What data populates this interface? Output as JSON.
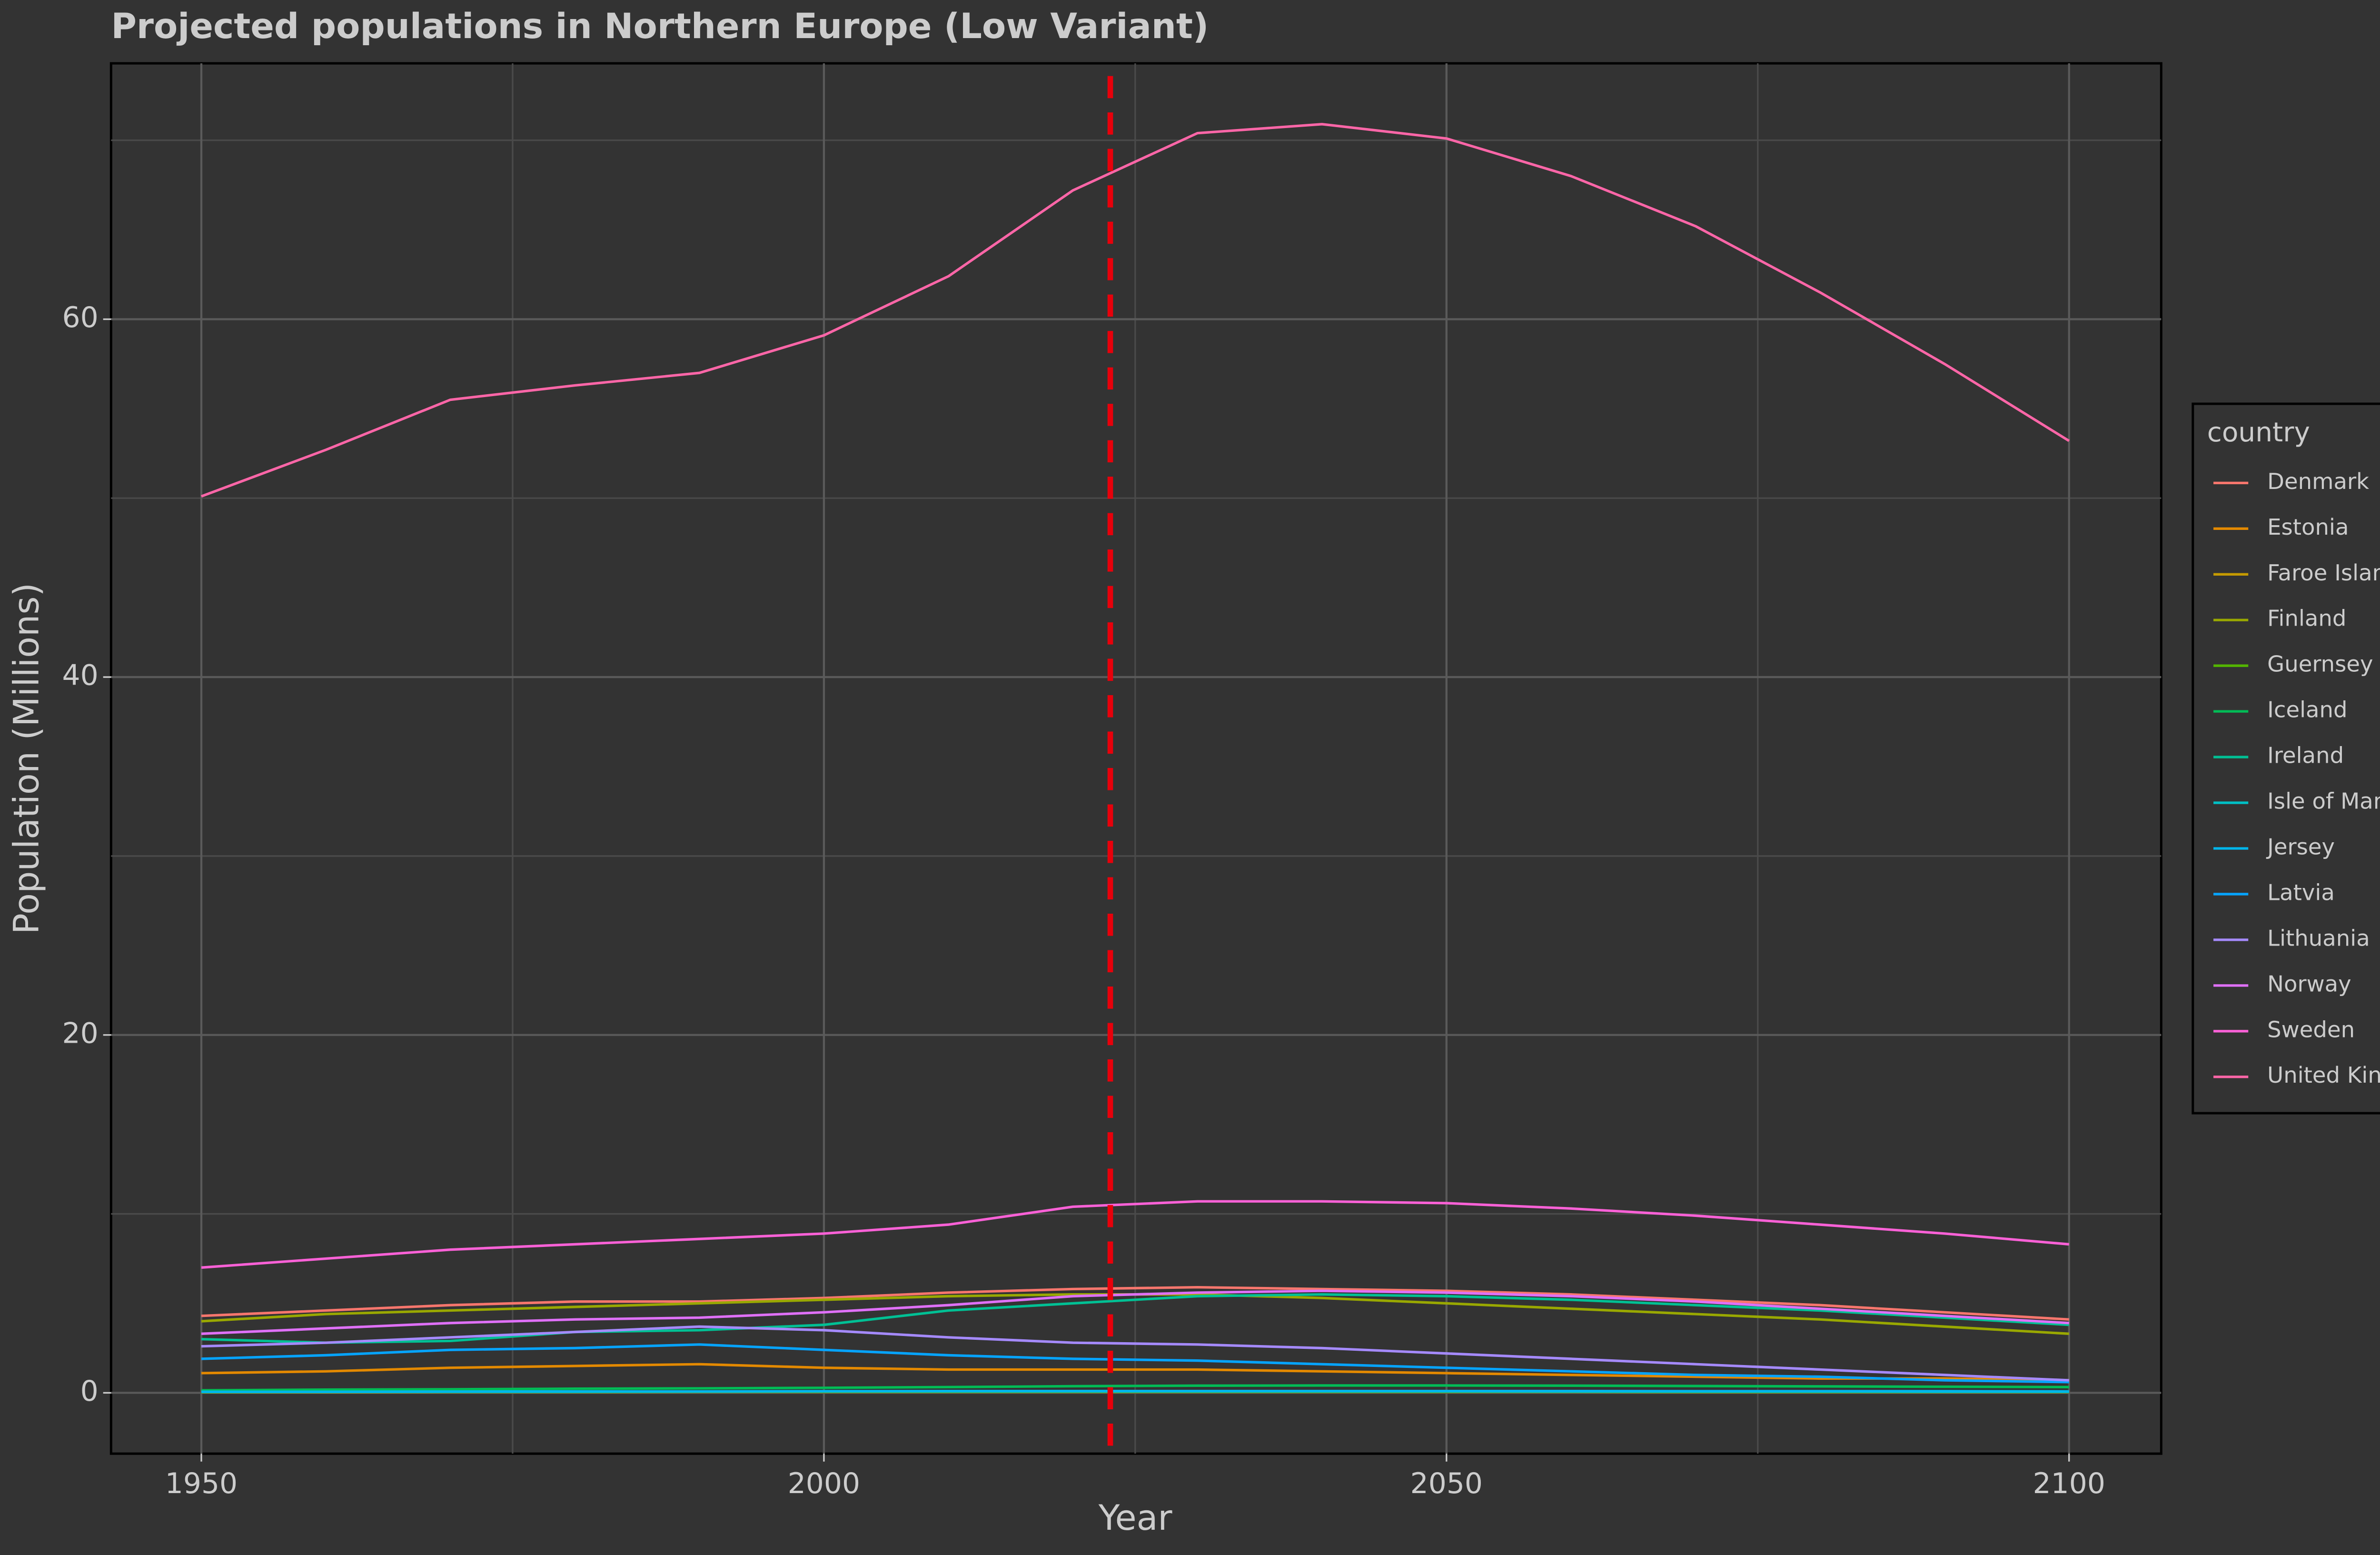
{
  "chart_data": {
    "type": "line",
    "title": "Projected populations in Northern Europe (Low Variant)",
    "x_label": "Year",
    "y_label": "Population (Millions)",
    "legend_title": "country",
    "legend_position": "right",
    "grid": true,
    "xlim": [
      1942.75,
      2107.4
    ],
    "ylim": [
      -3.4,
      74.3
    ],
    "xticks": [
      1950,
      2000,
      2050,
      2100
    ],
    "yticks": [
      0,
      20,
      40,
      60
    ],
    "minor_xticks": [
      1975,
      2025,
      2075
    ],
    "minor_yticks": [
      10,
      30,
      50,
      70
    ],
    "vline": {
      "x": 2023,
      "color": "#e8000b"
    },
    "x": [
      1950,
      1960,
      1970,
      1980,
      1990,
      2000,
      2010,
      2020,
      2030,
      2040,
      2050,
      2060,
      2070,
      2080,
      2090,
      2100
    ],
    "series": [
      {
        "name": "Denmark",
        "color": "#F8766D",
        "values": [
          4.3,
          4.6,
          4.9,
          5.1,
          5.1,
          5.3,
          5.6,
          5.8,
          5.9,
          5.8,
          5.7,
          5.5,
          5.2,
          4.9,
          4.5,
          4.1
        ]
      },
      {
        "name": "Estonia",
        "color": "#E38900",
        "values": [
          1.1,
          1.2,
          1.4,
          1.5,
          1.6,
          1.4,
          1.3,
          1.3,
          1.3,
          1.2,
          1.1,
          1.0,
          0.9,
          0.8,
          0.8,
          0.7
        ]
      },
      {
        "name": "Faroe Islands",
        "color": "#C49A00",
        "values": [
          0.03,
          0.03,
          0.04,
          0.04,
          0.05,
          0.05,
          0.05,
          0.05,
          0.05,
          0.05,
          0.05,
          0.05,
          0.04,
          0.04,
          0.04,
          0.04
        ]
      },
      {
        "name": "Finland",
        "color": "#99A800",
        "values": [
          4.0,
          4.4,
          4.6,
          4.8,
          5.0,
          5.2,
          5.4,
          5.5,
          5.5,
          5.3,
          5.0,
          4.7,
          4.4,
          4.1,
          3.7,
          3.3
        ]
      },
      {
        "name": "Guernsey",
        "color": "#53B400",
        "values": [
          0.04,
          0.05,
          0.05,
          0.05,
          0.06,
          0.06,
          0.06,
          0.06,
          0.06,
          0.06,
          0.06,
          0.06,
          0.05,
          0.05,
          0.05,
          0.05
        ]
      },
      {
        "name": "Iceland",
        "color": "#00BC56",
        "values": [
          0.14,
          0.18,
          0.2,
          0.23,
          0.25,
          0.28,
          0.32,
          0.37,
          0.4,
          0.41,
          0.41,
          0.4,
          0.38,
          0.36,
          0.34,
          0.32
        ]
      },
      {
        "name": "Ireland",
        "color": "#00C094",
        "values": [
          3.0,
          2.8,
          2.9,
          3.4,
          3.5,
          3.8,
          4.6,
          5.0,
          5.4,
          5.5,
          5.4,
          5.2,
          4.9,
          4.6,
          4.2,
          3.8
        ]
      },
      {
        "name": "Isle of Man",
        "color": "#00BFC4",
        "values": [
          0.05,
          0.05,
          0.06,
          0.06,
          0.07,
          0.08,
          0.08,
          0.08,
          0.08,
          0.08,
          0.08,
          0.07,
          0.07,
          0.07,
          0.06,
          0.06
        ]
      },
      {
        "name": "Jersey",
        "color": "#00B6EB",
        "values": [
          0.06,
          0.06,
          0.07,
          0.08,
          0.08,
          0.09,
          0.1,
          0.1,
          0.1,
          0.1,
          0.1,
          0.1,
          0.09,
          0.09,
          0.09,
          0.08
        ]
      },
      {
        "name": "Latvia",
        "color": "#06A4FF",
        "values": [
          1.9,
          2.1,
          2.4,
          2.5,
          2.7,
          2.4,
          2.1,
          1.9,
          1.8,
          1.6,
          1.4,
          1.2,
          1.0,
          0.9,
          0.7,
          0.6
        ]
      },
      {
        "name": "Lithuania",
        "color": "#A58AFF",
        "values": [
          2.6,
          2.8,
          3.1,
          3.4,
          3.7,
          3.5,
          3.1,
          2.8,
          2.7,
          2.5,
          2.2,
          1.9,
          1.6,
          1.3,
          1.0,
          0.7
        ]
      },
      {
        "name": "Norway",
        "color": "#DF70F8",
        "values": [
          3.3,
          3.6,
          3.9,
          4.1,
          4.2,
          4.5,
          4.9,
          5.4,
          5.6,
          5.7,
          5.6,
          5.4,
          5.1,
          4.7,
          4.3,
          3.9
        ]
      },
      {
        "name": "Sweden",
        "color": "#FB61D7",
        "values": [
          7.0,
          7.5,
          8.0,
          8.3,
          8.6,
          8.9,
          9.4,
          10.4,
          10.7,
          10.7,
          10.6,
          10.3,
          9.9,
          9.4,
          8.9,
          8.3
        ]
      },
      {
        "name": "United Kingdom",
        "color": "#FF66A8",
        "values": [
          50.1,
          52.7,
          55.5,
          56.3,
          57.0,
          59.1,
          62.4,
          67.2,
          70.4,
          70.9,
          70.1,
          68.0,
          65.2,
          61.5,
          57.5,
          53.2
        ]
      }
    ]
  }
}
